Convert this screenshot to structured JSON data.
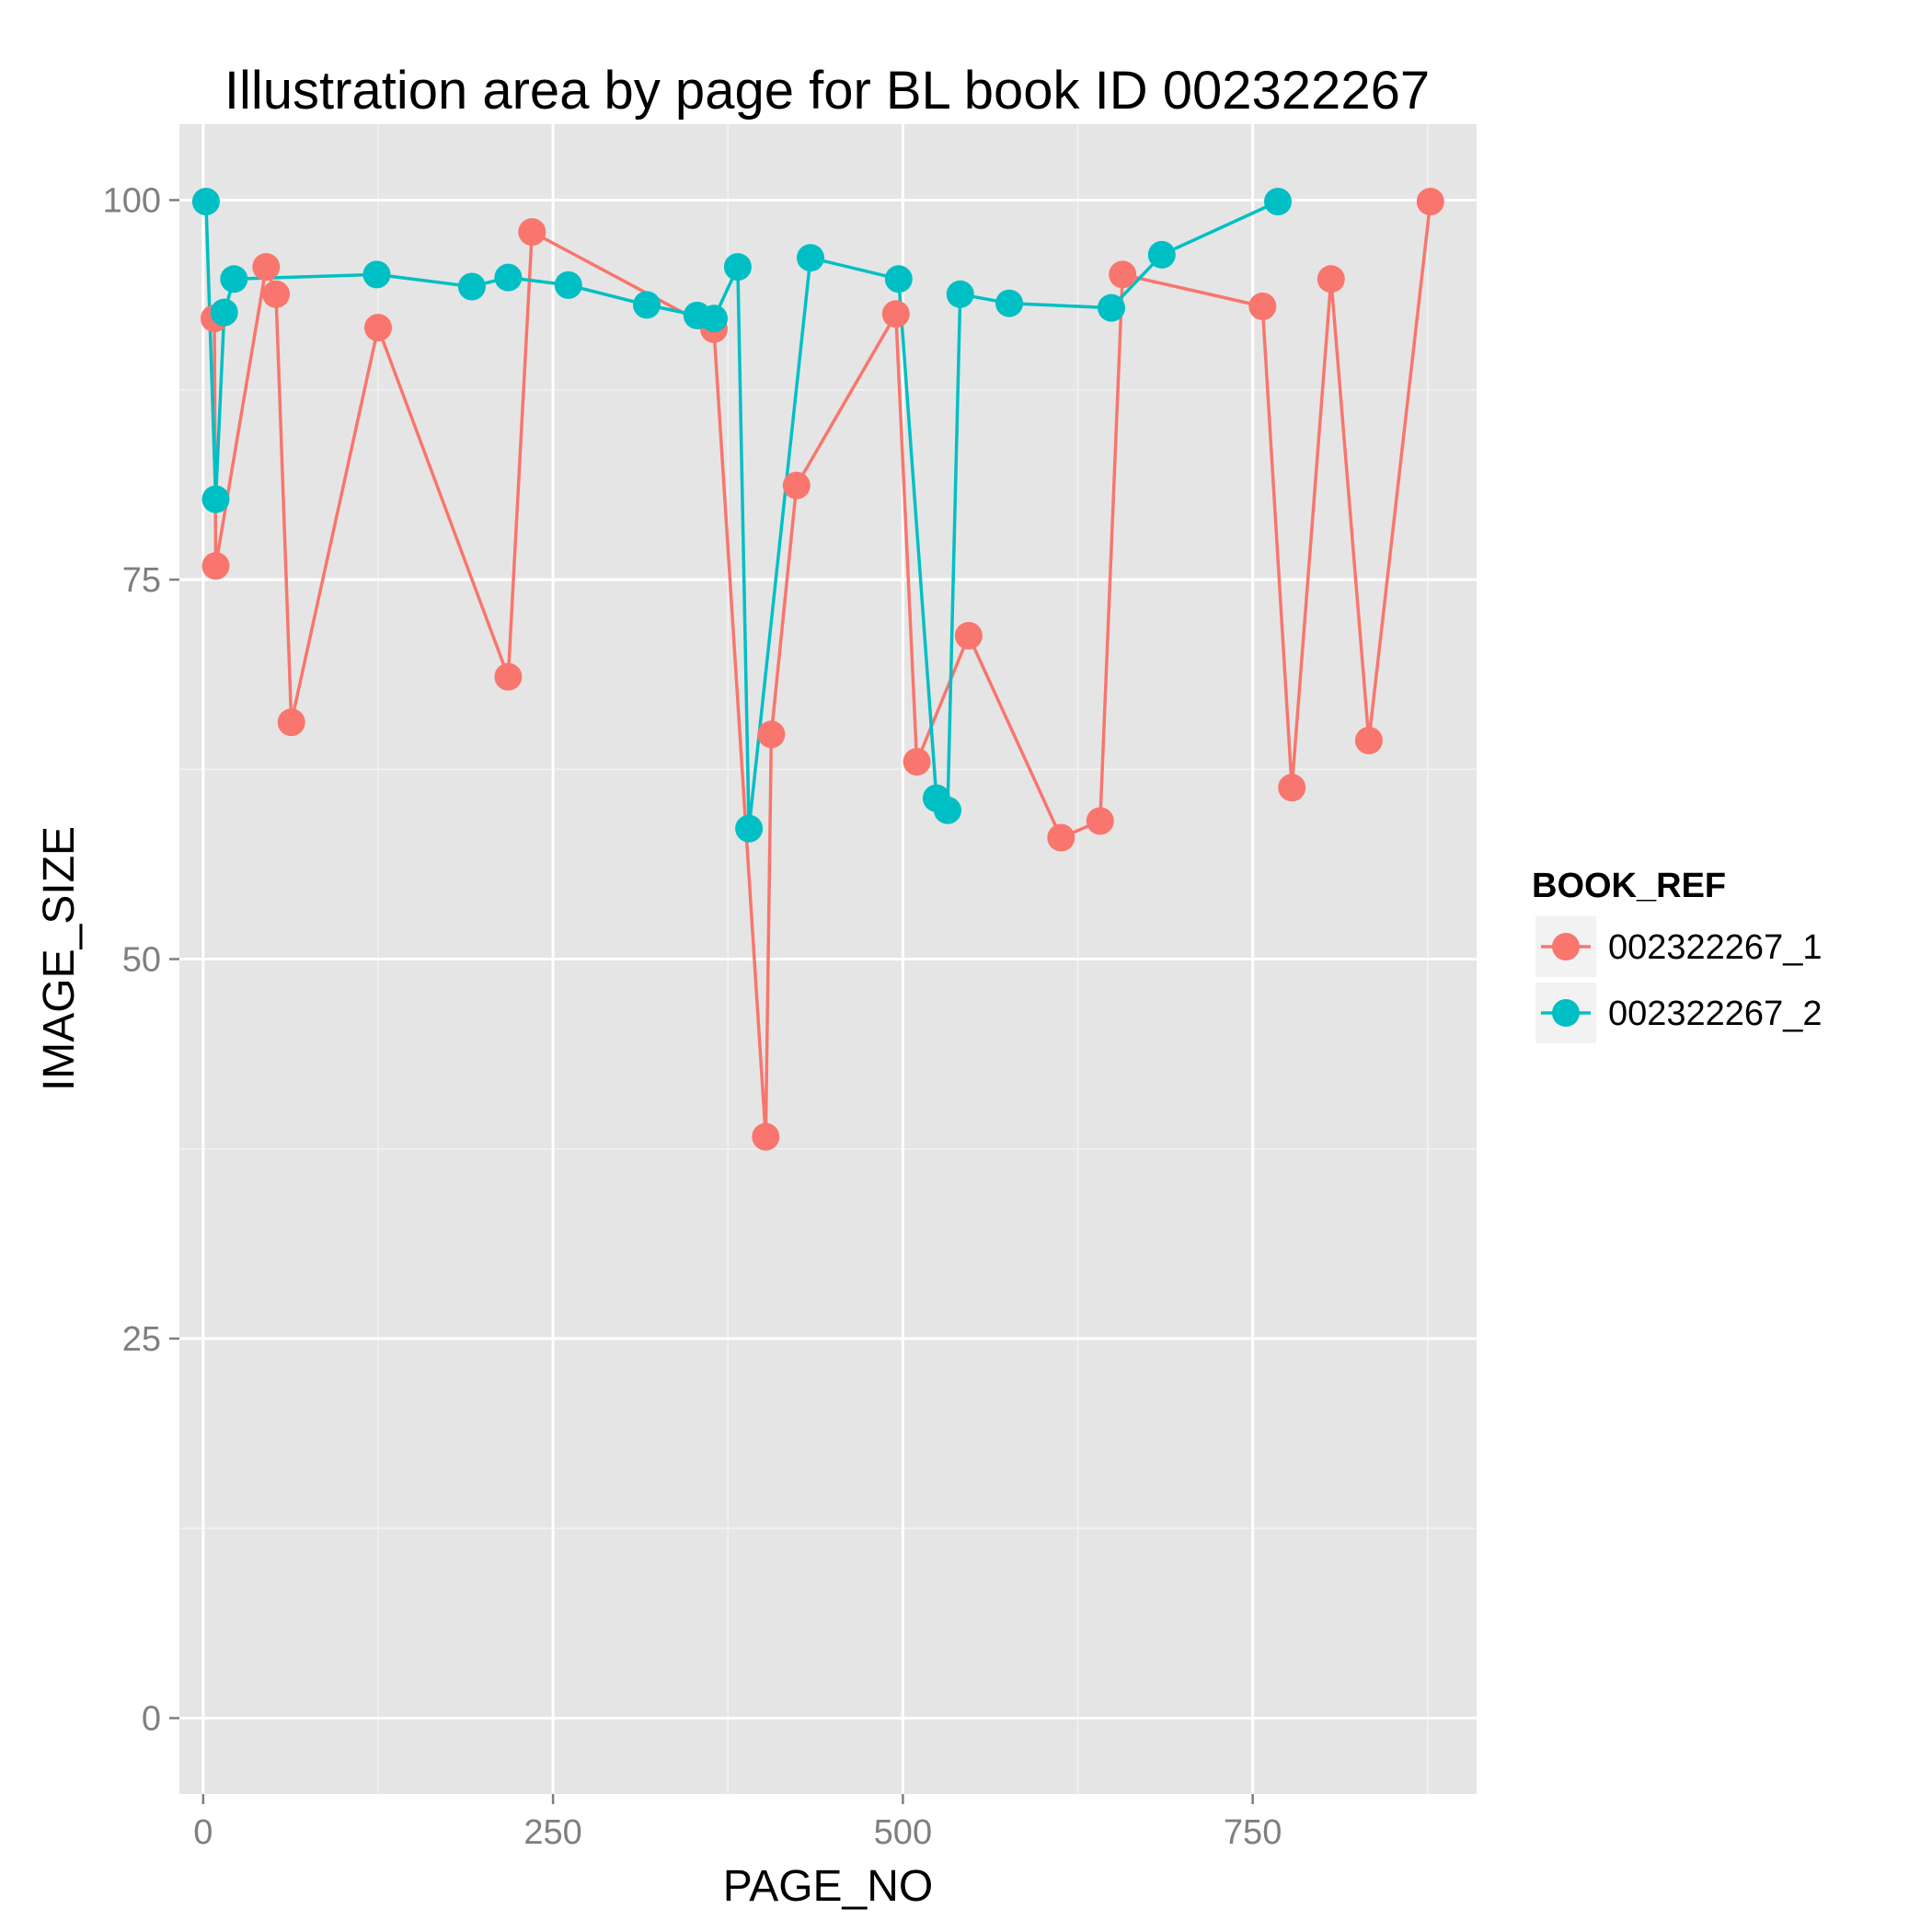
{
  "chart_data": {
    "type": "line",
    "title": "Illustration area by page for BL book ID 002322267",
    "xlabel": "PAGE_NO",
    "ylabel": "IMAGE_SIZE",
    "xlim": [
      -17,
      910
    ],
    "ylim": [
      -5,
      105
    ],
    "x_ticks": [
      0,
      250,
      500,
      750
    ],
    "x_tick_labels": [
      "0",
      "250",
      "500",
      "750"
    ],
    "y_ticks": [
      0,
      25,
      50,
      75,
      100
    ],
    "y_tick_labels": [
      "0",
      "25",
      "50",
      "75",
      "100"
    ],
    "grid": true,
    "legend_title": "BOOK_REF",
    "legend_position": "right",
    "series": [
      {
        "name": "002322267_1",
        "color": "#F8766D",
        "points": [
          [
            8,
            92.2
          ],
          [
            9,
            75.9
          ],
          [
            45,
            95.6
          ],
          [
            52,
            93.8
          ],
          [
            63,
            65.6
          ],
          [
            125,
            91.6
          ],
          [
            218,
            68.6
          ],
          [
            235,
            97.9
          ],
          [
            365,
            91.5
          ],
          [
            402,
            38.3
          ],
          [
            406,
            64.8
          ],
          [
            424,
            81.2
          ],
          [
            495,
            92.5
          ],
          [
            510,
            63.0
          ],
          [
            547,
            71.3
          ],
          [
            613,
            58.0
          ],
          [
            641,
            59.1
          ],
          [
            657,
            95.1
          ],
          [
            757,
            93.0
          ],
          [
            778,
            61.3
          ],
          [
            806,
            94.8
          ],
          [
            833,
            64.4
          ],
          [
            877,
            99.9
          ]
        ]
      },
      {
        "name": "002322267_2",
        "color": "#00BFC4",
        "points": [
          [
            2,
            99.9
          ],
          [
            9,
            80.3
          ],
          [
            15,
            92.6
          ],
          [
            22,
            94.8
          ],
          [
            124,
            95.1
          ],
          [
            192,
            94.3
          ],
          [
            218,
            94.9
          ],
          [
            261,
            94.4
          ],
          [
            317,
            93.1
          ],
          [
            353,
            92.4
          ],
          [
            365,
            92.2
          ],
          [
            382,
            95.6
          ],
          [
            390,
            58.6
          ],
          [
            434,
            96.2
          ],
          [
            497,
            94.8
          ],
          [
            524,
            60.6
          ],
          [
            532,
            59.8
          ],
          [
            541,
            93.8
          ],
          [
            576,
            93.2
          ],
          [
            649,
            92.9
          ],
          [
            685,
            96.4
          ],
          [
            768,
            99.9
          ]
        ]
      }
    ]
  }
}
